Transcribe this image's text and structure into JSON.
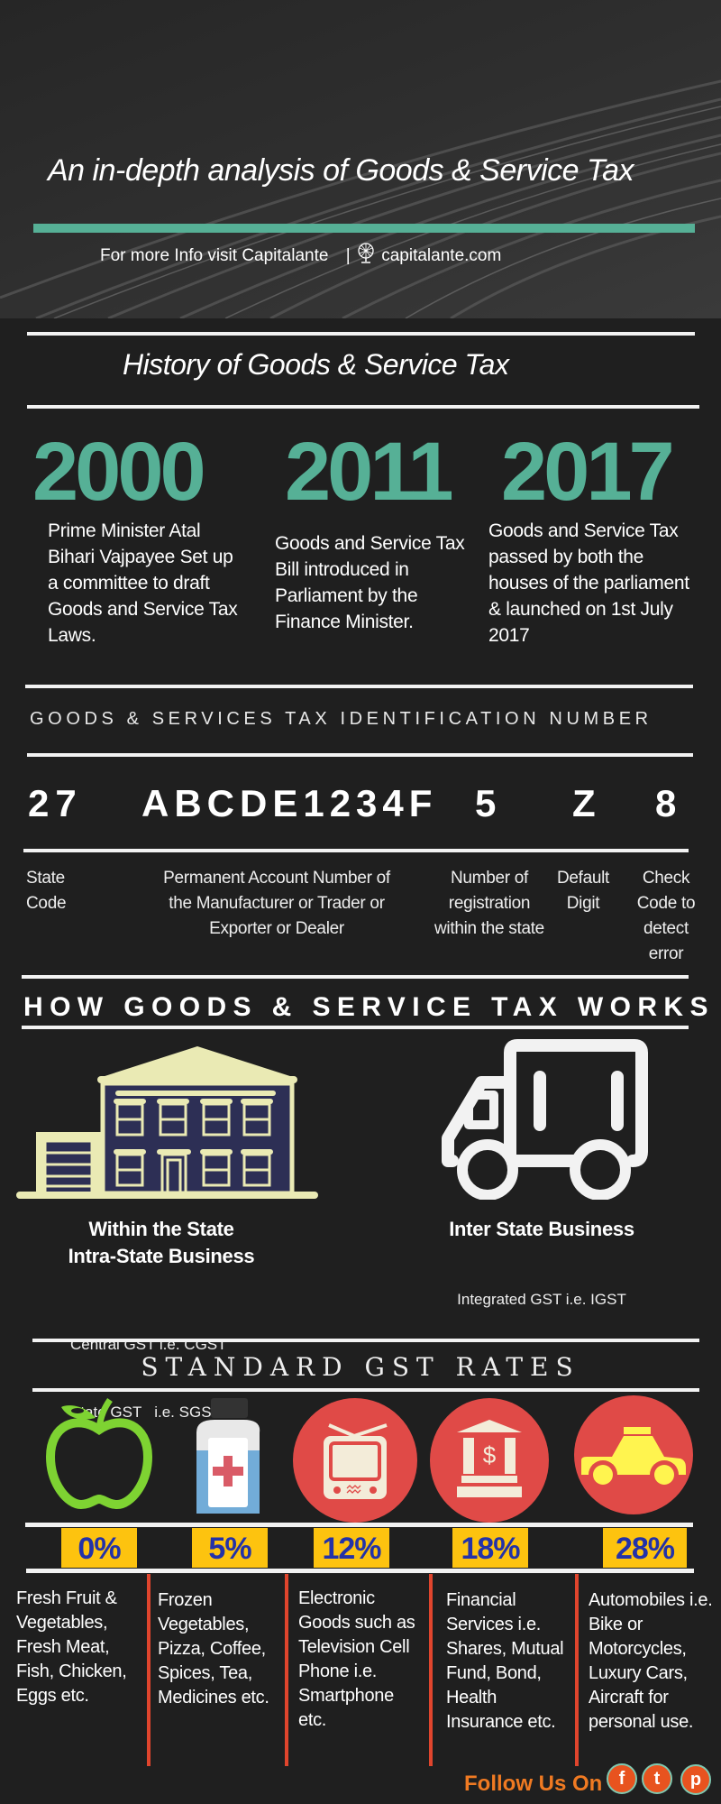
{
  "header": {
    "title": "An in-depth analysis of Goods & Service Tax",
    "info_text": "For more Info visit Capitalante",
    "separator": "|",
    "website": "capitalante.com",
    "accent_color": "#56b096"
  },
  "history": {
    "title": "History of Goods & Service Tax",
    "items": [
      {
        "year": "2000",
        "text": "Prime Minister Atal Bihari Vajpayee Set up a committee to draft Goods and Service Tax Laws."
      },
      {
        "year": "2011",
        "text": "Goods and Service Tax Bill introduced in Parliament by the Finance Minister."
      },
      {
        "year": "2017",
        "text": "Goods and Service Tax passed by both the houses of the parliament & launched on 1st July 2017"
      }
    ]
  },
  "gstin": {
    "title": "GOODS & SERVICES TAX IDENTIFICATION NUMBER",
    "parts": [
      {
        "code": "27",
        "label": "State Code"
      },
      {
        "code": "ABCDE1234F",
        "label": "Permanent Account Number of the Manufacturer or Trader or Exporter or Dealer"
      },
      {
        "code": "5",
        "label": "Number of registration within the state"
      },
      {
        "code": "Z",
        "label": "Default Digit"
      },
      {
        "code": "8",
        "label": "Check Code to detect error"
      }
    ]
  },
  "how": {
    "title": "HOW GOODS & SERVICE TAX WORKS",
    "intra": {
      "title1": "Within the State",
      "title2": "Intra-State Business",
      "line1": "Central GST i.e. CGST",
      "line2": "State GST   i.e. SGST",
      "icon": "building-icon"
    },
    "inter": {
      "title": "Inter State Business",
      "line1": "Integrated GST i.e. IGST",
      "icon": "truck-icon"
    }
  },
  "rates": {
    "title": "STANDARD GST RATES",
    "items": [
      {
        "rate": "0%",
        "icon": "apple-icon",
        "text": "Fresh Fruit & Vegetables, Fresh Meat, Fish, Chicken, Eggs etc."
      },
      {
        "rate": "5%",
        "icon": "medicine-bottle-icon",
        "text": "Frozen Vegetables, Pizza, Coffee, Spices, Tea, Medicines etc."
      },
      {
        "rate": "12%",
        "icon": "television-icon",
        "text": "Electronic Goods such as Television Cell Phone i.e. Smartphone etc."
      },
      {
        "rate": "18%",
        "icon": "bank-icon",
        "text": "Financial Services i.e. Shares, Mutual Fund, Bond, Health Insurance etc."
      },
      {
        "rate": "28%",
        "icon": "car-icon",
        "text": "Automobiles i.e. Bike or Motorcycles, Luxury Cars, Aircraft for personal use."
      }
    ]
  },
  "footer": {
    "follow": "Follow Us On",
    "social": [
      {
        "name": "facebook",
        "glyph": "f"
      },
      {
        "name": "twitter",
        "glyph": "t"
      },
      {
        "name": "pinterest",
        "glyph": "p"
      }
    ]
  }
}
